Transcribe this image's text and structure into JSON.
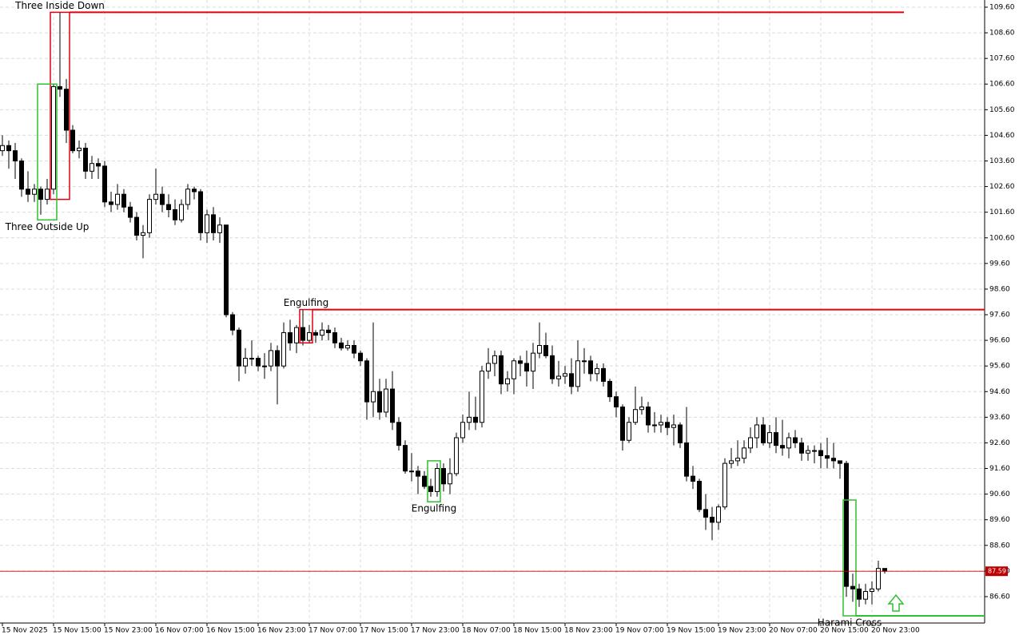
{
  "chart_data": {
    "type": "candlestick",
    "ylim": [
      85.57,
      109.88
    ],
    "yticks": [
      {
        "value": 86.6,
        "label": "86.60"
      },
      {
        "value": 87.6,
        "label": "87.60"
      },
      {
        "value": 88.6,
        "label": "88.60"
      },
      {
        "value": 89.6,
        "label": "89.60"
      },
      {
        "value": 90.6,
        "label": "90.60"
      },
      {
        "value": 91.6,
        "label": "91.60"
      },
      {
        "value": 92.6,
        "label": "92.60"
      },
      {
        "value": 93.6,
        "label": "93.60"
      },
      {
        "value": 94.6,
        "label": "94.60"
      },
      {
        "value": 95.6,
        "label": "95.60"
      },
      {
        "value": 96.6,
        "label": "96.60"
      },
      {
        "value": 97.6,
        "label": "97.60"
      },
      {
        "value": 98.6,
        "label": "98.60"
      },
      {
        "value": 99.6,
        "label": "99.60"
      },
      {
        "value": 100.6,
        "label": "100.60"
      },
      {
        "value": 101.6,
        "label": "101.60"
      },
      {
        "value": 102.6,
        "label": "102.60"
      },
      {
        "value": 103.6,
        "label": "103.60"
      },
      {
        "value": 104.6,
        "label": "104.60"
      },
      {
        "value": 105.6,
        "label": "105.60"
      },
      {
        "value": 106.6,
        "label": "106.60"
      },
      {
        "value": 107.6,
        "label": "107.60"
      },
      {
        "value": 108.6,
        "label": "108.60"
      },
      {
        "value": 109.6,
        "label": "109.60"
      }
    ],
    "xticks": [
      {
        "value": 0,
        "label": "15 Nov 2025"
      },
      {
        "value": 8,
        "label": "15 Nov 15:00"
      },
      {
        "value": 16,
        "label": "15 Nov 23:00"
      },
      {
        "value": 24,
        "label": "16 Nov 07:00"
      },
      {
        "value": 32,
        "label": "16 Nov 15:00"
      },
      {
        "value": 40,
        "label": "16 Nov 23:00"
      },
      {
        "value": 48,
        "label": "17 Nov 07:00"
      },
      {
        "value": 56,
        "label": "17 Nov 15:00"
      },
      {
        "value": 64,
        "label": "17 Nov 23:00"
      },
      {
        "value": 72,
        "label": "18 Nov 07:00"
      },
      {
        "value": 80,
        "label": "18 Nov 15:00"
      },
      {
        "value": 88,
        "label": "18 Nov 23:00"
      },
      {
        "value": 96,
        "label": "19 Nov 07:00"
      },
      {
        "value": 104,
        "label": "19 Nov 15:00"
      },
      {
        "value": 112,
        "label": "19 Nov 23:00"
      },
      {
        "value": 120,
        "label": "20 Nov 07:00"
      },
      {
        "value": 128,
        "label": "20 Nov 15:00"
      },
      {
        "value": 136,
        "label": "20 Nov 23:00"
      }
    ],
    "grid": true,
    "up_color": "#ffffff",
    "down_color": "#000000",
    "ohlc": [
      [
        104.0,
        104.6,
        103.8,
        104.2
      ],
      [
        104.2,
        104.4,
        103.3,
        104.0
      ],
      [
        104.0,
        104.3,
        102.9,
        103.6
      ],
      [
        103.6,
        103.7,
        102.2,
        102.5
      ],
      [
        102.5,
        103.2,
        102.0,
        102.3
      ],
      [
        102.3,
        102.7,
        102.0,
        102.5
      ],
      [
        102.5,
        102.6,
        101.5,
        102.1
      ],
      [
        102.1,
        102.9,
        101.9,
        102.5
      ],
      [
        102.5,
        106.6,
        102.3,
        106.5
      ],
      [
        106.5,
        109.4,
        106.1,
        106.4
      ],
      [
        106.4,
        106.8,
        104.3,
        104.8
      ],
      [
        104.8,
        105.0,
        103.9,
        104.0
      ],
      [
        104.0,
        104.4,
        103.7,
        104.1
      ],
      [
        104.1,
        104.3,
        102.9,
        103.2
      ],
      [
        103.2,
        103.8,
        102.9,
        103.5
      ],
      [
        103.5,
        103.7,
        102.9,
        103.4
      ],
      [
        103.4,
        103.6,
        101.8,
        102.0
      ],
      [
        102.0,
        102.4,
        101.6,
        101.9
      ],
      [
        101.9,
        102.7,
        101.7,
        102.3
      ],
      [
        102.3,
        102.5,
        101.6,
        101.8
      ],
      [
        101.8,
        102.0,
        101.2,
        101.4
      ],
      [
        101.4,
        101.6,
        100.5,
        100.7
      ],
      [
        100.7,
        101.1,
        99.8,
        100.8
      ],
      [
        100.8,
        102.3,
        100.6,
        102.1
      ],
      [
        102.1,
        103.3,
        101.9,
        102.3
      ],
      [
        102.3,
        102.6,
        101.6,
        101.9
      ],
      [
        101.9,
        102.3,
        101.4,
        101.7
      ],
      [
        101.7,
        102.1,
        101.1,
        101.3
      ],
      [
        101.3,
        102.1,
        101.2,
        101.9
      ],
      [
        101.9,
        102.7,
        101.7,
        102.5
      ],
      [
        102.5,
        102.6,
        102.1,
        102.4
      ],
      [
        102.4,
        102.5,
        100.5,
        100.8
      ],
      [
        100.8,
        101.7,
        100.4,
        101.5
      ],
      [
        101.5,
        101.8,
        100.5,
        100.8
      ],
      [
        100.8,
        101.4,
        100.4,
        101.1
      ],
      [
        101.1,
        101.1,
        97.5,
        97.6
      ],
      [
        97.6,
        97.7,
        96.8,
        97.0
      ],
      [
        97.0,
        97.1,
        95.0,
        95.6
      ],
      [
        95.6,
        96.3,
        95.3,
        95.9
      ],
      [
        95.9,
        96.6,
        95.6,
        95.9
      ],
      [
        95.9,
        96.0,
        95.4,
        95.6
      ],
      [
        95.6,
        96.1,
        95.1,
        95.6
      ],
      [
        95.6,
        96.5,
        95.4,
        96.2
      ],
      [
        96.2,
        96.4,
        94.1,
        95.6
      ],
      [
        95.6,
        97.3,
        95.5,
        96.9
      ],
      [
        96.9,
        97.4,
        96.2,
        96.5
      ],
      [
        96.5,
        97.2,
        96.1,
        97.1
      ],
      [
        97.1,
        97.8,
        96.4,
        96.6
      ],
      [
        96.6,
        97.2,
        96.5,
        96.9
      ],
      [
        96.9,
        97.0,
        96.5,
        96.8
      ],
      [
        96.8,
        97.3,
        96.6,
        97.0
      ],
      [
        97.0,
        97.2,
        96.6,
        96.9
      ],
      [
        96.9,
        97.1,
        96.3,
        96.5
      ],
      [
        96.5,
        96.7,
        96.2,
        96.3
      ],
      [
        96.3,
        96.6,
        96.2,
        96.4
      ],
      [
        96.4,
        96.6,
        95.9,
        96.1
      ],
      [
        96.1,
        96.2,
        95.6,
        95.8
      ],
      [
        95.8,
        95.9,
        93.5,
        94.2
      ],
      [
        94.2,
        97.3,
        93.6,
        94.6
      ],
      [
        94.6,
        95.1,
        93.5,
        93.8
      ],
      [
        93.8,
        95.1,
        93.6,
        94.7
      ],
      [
        94.7,
        95.4,
        93.1,
        93.4
      ],
      [
        93.4,
        93.6,
        92.3,
        92.5
      ],
      [
        92.5,
        92.7,
        91.4,
        91.5
      ],
      [
        91.5,
        92.2,
        91.1,
        91.5
      ],
      [
        91.5,
        91.7,
        90.6,
        91.3
      ],
      [
        91.3,
        91.5,
        90.8,
        90.9
      ],
      [
        90.9,
        91.2,
        90.5,
        90.7
      ],
      [
        90.7,
        91.8,
        90.5,
        91.6
      ],
      [
        91.6,
        91.8,
        90.7,
        91.0
      ],
      [
        91.0,
        92.0,
        90.6,
        91.4
      ],
      [
        91.4,
        93.0,
        91.3,
        92.8
      ],
      [
        92.8,
        93.7,
        92.6,
        93.4
      ],
      [
        93.4,
        94.6,
        93.1,
        93.6
      ],
      [
        93.6,
        94.4,
        93.1,
        93.4
      ],
      [
        93.4,
        95.6,
        93.2,
        95.4
      ],
      [
        95.4,
        96.3,
        95.1,
        95.7
      ],
      [
        95.7,
        96.2,
        95.2,
        96.0
      ],
      [
        96.0,
        96.2,
        94.5,
        94.9
      ],
      [
        94.9,
        95.4,
        94.6,
        95.1
      ],
      [
        95.1,
        95.9,
        94.5,
        95.8
      ],
      [
        95.8,
        96.0,
        95.2,
        95.7
      ],
      [
        95.7,
        96.2,
        94.8,
        95.4
      ],
      [
        95.4,
        96.5,
        94.7,
        96.1
      ],
      [
        96.1,
        97.3,
        95.9,
        96.4
      ],
      [
        96.4,
        96.9,
        95.9,
        96.0
      ],
      [
        96.0,
        96.4,
        94.9,
        95.1
      ],
      [
        95.1,
        95.8,
        94.8,
        95.2
      ],
      [
        95.2,
        95.6,
        94.9,
        95.3
      ],
      [
        95.3,
        95.9,
        94.5,
        94.8
      ],
      [
        94.8,
        96.6,
        94.6,
        95.8
      ],
      [
        95.8,
        96.3,
        95.3,
        95.8
      ],
      [
        95.8,
        96.0,
        95.0,
        95.3
      ],
      [
        95.3,
        95.7,
        95.0,
        95.5
      ],
      [
        95.5,
        95.7,
        94.8,
        95.0
      ],
      [
        95.0,
        95.1,
        94.2,
        94.4
      ],
      [
        94.4,
        94.6,
        93.6,
        94.0
      ],
      [
        94.0,
        94.1,
        92.3,
        92.7
      ],
      [
        92.7,
        93.6,
        92.6,
        93.4
      ],
      [
        93.4,
        94.8,
        93.3,
        93.9
      ],
      [
        93.9,
        94.4,
        93.7,
        94.0
      ],
      [
        94.0,
        94.2,
        93.0,
        93.3
      ],
      [
        93.3,
        93.8,
        93.0,
        93.3
      ],
      [
        93.3,
        93.7,
        93.0,
        93.4
      ],
      [
        93.4,
        93.6,
        92.9,
        93.2
      ],
      [
        93.2,
        93.7,
        92.5,
        93.3
      ],
      [
        93.3,
        93.4,
        92.4,
        92.6
      ],
      [
        92.6,
        94.0,
        91.1,
        91.3
      ],
      [
        91.3,
        91.7,
        90.8,
        91.1
      ],
      [
        91.1,
        91.2,
        89.9,
        90.0
      ],
      [
        90.0,
        90.6,
        89.2,
        89.7
      ],
      [
        89.7,
        90.1,
        88.8,
        89.5
      ],
      [
        89.5,
        90.2,
        89.2,
        90.1
      ],
      [
        90.1,
        92.0,
        90.0,
        91.8
      ],
      [
        91.8,
        92.4,
        91.6,
        91.9
      ],
      [
        91.9,
        92.7,
        91.7,
        92.0
      ],
      [
        92.0,
        92.7,
        91.8,
        92.4
      ],
      [
        92.4,
        93.2,
        92.2,
        92.8
      ],
      [
        92.8,
        93.6,
        92.4,
        93.3
      ],
      [
        93.3,
        93.6,
        92.5,
        92.6
      ],
      [
        92.6,
        93.3,
        92.4,
        93.0
      ],
      [
        93.0,
        93.6,
        92.2,
        92.5
      ],
      [
        92.5,
        93.5,
        92.1,
        92.4
      ],
      [
        92.4,
        93.0,
        92.0,
        92.8
      ],
      [
        92.8,
        93.1,
        92.4,
        92.6
      ],
      [
        92.6,
        92.8,
        91.9,
        92.2
      ],
      [
        92.2,
        92.5,
        91.9,
        92.3
      ],
      [
        92.3,
        92.5,
        91.8,
        92.3
      ],
      [
        92.3,
        92.6,
        91.6,
        92.1
      ],
      [
        92.1,
        92.8,
        91.6,
        92.0
      ],
      [
        92.0,
        92.6,
        91.6,
        91.9
      ],
      [
        91.9,
        91.9,
        91.2,
        91.8
      ],
      [
        91.8,
        91.9,
        86.6,
        87.0
      ],
      [
        87.0,
        87.5,
        86.4,
        86.9
      ],
      [
        86.9,
        87.1,
        86.2,
        86.5
      ],
      [
        86.5,
        87.1,
        86.3,
        86.8
      ],
      [
        86.8,
        87.2,
        86.3,
        86.9
      ],
      [
        86.9,
        88.0,
        86.8,
        87.7
      ],
      [
        87.7,
        87.7,
        87.5,
        87.59
      ]
    ],
    "price_line": {
      "value": 87.59,
      "color": "#c00000"
    },
    "patterns": [
      {
        "label": "Three Inside Down",
        "color": "#e00010",
        "start": 8,
        "end": 10,
        "low": 102.1,
        "high": 109.4,
        "label_side": "top",
        "level": 109.4,
        "level_end": 141
      },
      {
        "label": "Three Outside Up",
        "color": "#30c030",
        "start": 6,
        "end": 8,
        "low": 101.3,
        "high": 106.6,
        "label_side": "bottom"
      },
      {
        "label": "Engulfing",
        "color": "#e00010",
        "start": 47,
        "end": 48,
        "low": 96.5,
        "high": 97.8,
        "label_side": "top",
        "level": 97.8
      },
      {
        "label": "Engulfing",
        "color": "#30c030",
        "start": 67,
        "end": 68,
        "low": 90.3,
        "high": 91.9,
        "label_side": "bottom"
      },
      {
        "label": "Harami Cross",
        "color": "#30c030",
        "start": 132,
        "end": 133,
        "low": 85.85,
        "high": 90.37,
        "label_side": "bottom",
        "level": 85.85
      }
    ]
  }
}
